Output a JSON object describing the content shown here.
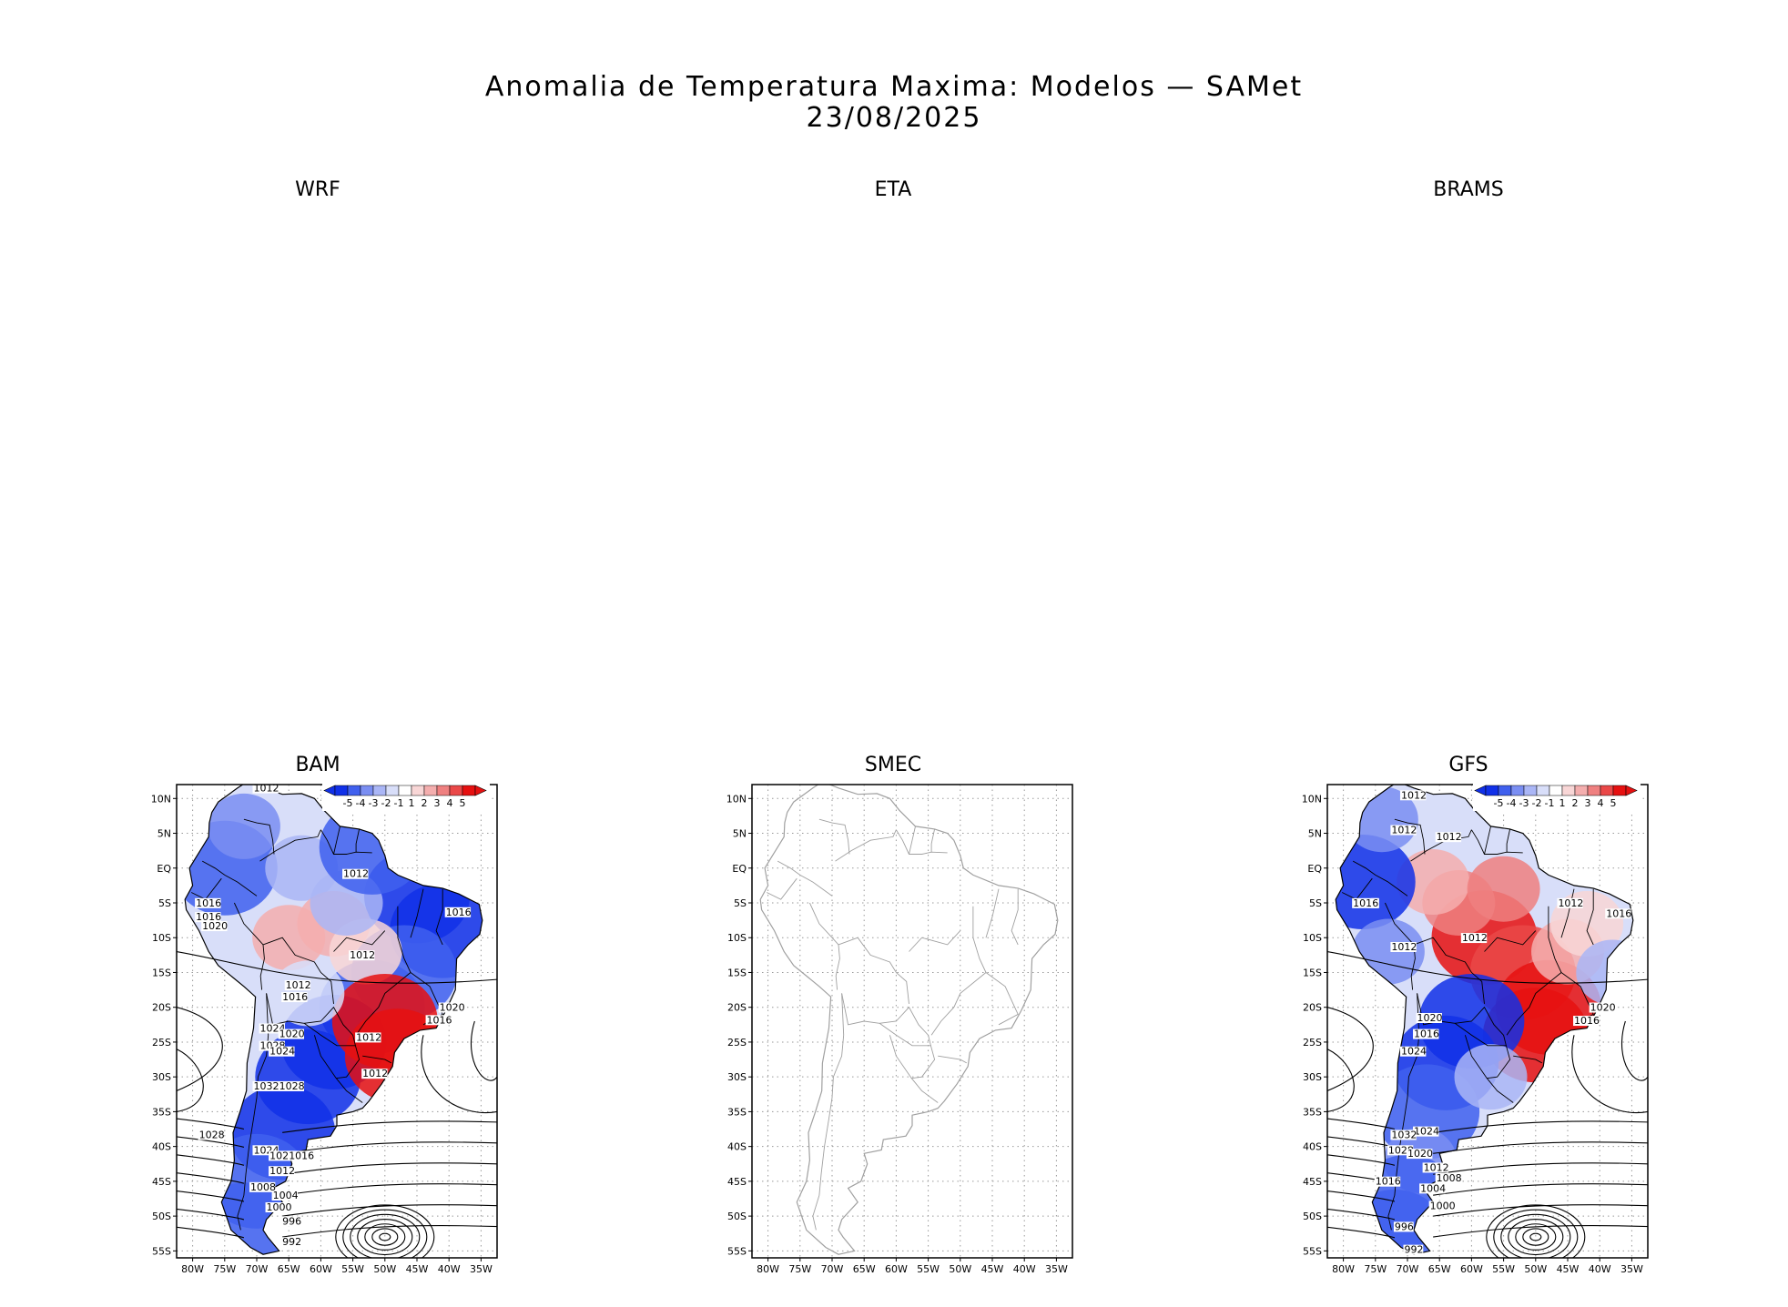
{
  "figure": {
    "title": "Anomalia de Temperatura Maxima: Modelos — SAMet",
    "date": "23/08/2025"
  },
  "colors": {
    "neg5": "#1030e8",
    "neg4": "#4060ee",
    "neg3": "#7a8ef2",
    "neg2": "#aab6f6",
    "neg1": "#d8def9",
    "neutral": "#ffffff",
    "pos1": "#f8d6d6",
    "pos2": "#f4aeae",
    "pos3": "#ef8080",
    "pos4": "#ea4848",
    "pos5": "#e61010",
    "contour": "#000000",
    "coast_gray": "#a0a0a0"
  },
  "chart_data": [
    {
      "type": "heatmap",
      "name": "WRF",
      "title": "WRF",
      "has_data": false
    },
    {
      "type": "heatmap",
      "name": "ETA",
      "title": "ETA",
      "has_data": false
    },
    {
      "type": "heatmap",
      "name": "BRAMS",
      "title": "BRAMS",
      "has_data": false
    },
    {
      "type": "heatmap",
      "name": "BAM",
      "title": "BAM",
      "has_data": true,
      "legend": {
        "labels": [
          "-5",
          "-4",
          "-3",
          "-2",
          "-1",
          "1",
          "2",
          "3",
          "4",
          "5"
        ],
        "placement": "top-right"
      },
      "ylabels": [
        "10N",
        "5N",
        "EQ",
        "5S",
        "10S",
        "15S",
        "20S",
        "25S",
        "30S",
        "35S",
        "40S",
        "45S",
        "50S",
        "55S"
      ],
      "xlabels": [
        "80W",
        "75W",
        "70W",
        "65W",
        "60W",
        "55W",
        "50W",
        "45W",
        "40W",
        "35W"
      ],
      "xlim": [
        -82.5,
        -32.5
      ],
      "ylim": [
        -56,
        12
      ],
      "contour_labels": [
        {
          "text": "1012",
          "lon": -70.5,
          "lat": 11.0
        },
        {
          "text": "1012",
          "lon": -56.5,
          "lat": -1.3
        },
        {
          "text": "1016",
          "lon": -40.5,
          "lat": -6.8
        },
        {
          "text": "1016",
          "lon": -79.5,
          "lat": -5.5
        },
        {
          "text": "1016",
          "lon": -79.5,
          "lat": -7.5
        },
        {
          "text": "1020",
          "lon": -78.5,
          "lat": -8.8
        },
        {
          "text": "1012",
          "lon": -55.5,
          "lat": -13.0
        },
        {
          "text": "1012",
          "lon": -65.5,
          "lat": -17.3
        },
        {
          "text": "1016",
          "lon": -66.0,
          "lat": -19.0
        },
        {
          "text": "1020",
          "lon": -41.5,
          "lat": -20.5
        },
        {
          "text": "1016",
          "lon": -43.5,
          "lat": -22.3
        },
        {
          "text": "1024",
          "lon": -69.5,
          "lat": -23.5
        },
        {
          "text": "1020",
          "lon": -66.5,
          "lat": -24.3
        },
        {
          "text": "1012",
          "lon": -54.5,
          "lat": -24.8
        },
        {
          "text": "1028",
          "lon": -69.5,
          "lat": -26.0
        },
        {
          "text": "1024",
          "lon": -68.0,
          "lat": -26.8
        },
        {
          "text": "1012",
          "lon": -53.5,
          "lat": -30.0
        },
        {
          "text": "1032",
          "lon": -70.5,
          "lat": -31.8
        },
        {
          "text": "1028",
          "lon": -66.5,
          "lat": -31.8
        },
        {
          "text": "1028",
          "lon": -79.0,
          "lat": -38.8
        },
        {
          "text": "1024",
          "lon": -70.5,
          "lat": -41.0
        },
        {
          "text": "1020",
          "lon": -68.0,
          "lat": -41.8
        },
        {
          "text": "1016",
          "lon": -65.0,
          "lat": -41.8
        },
        {
          "text": "1012",
          "lon": -68.0,
          "lat": -44.0
        },
        {
          "text": "1008",
          "lon": -71.0,
          "lat": -46.3
        },
        {
          "text": "1004",
          "lon": -67.5,
          "lat": -47.5
        },
        {
          "text": "1000",
          "lon": -68.5,
          "lat": -49.2
        },
        {
          "text": "996",
          "lon": -66.0,
          "lat": -51.2
        },
        {
          "text": "992",
          "lon": -66.0,
          "lat": -54.2
        }
      ],
      "anomaly_regions": [
        {
          "lon": -41,
          "lat": -9,
          "value": -5
        },
        {
          "lon": -45,
          "lat": -4,
          "value": -5
        },
        {
          "lon": -47,
          "lat": -15,
          "value": -4
        },
        {
          "lon": -52,
          "lat": -20,
          "value": -4
        },
        {
          "lon": -62,
          "lat": -30,
          "value": -5
        },
        {
          "lon": -66,
          "lat": -38,
          "value": -5
        },
        {
          "lon": -58,
          "lat": -25,
          "value": -5
        },
        {
          "lon": -70,
          "lat": -45,
          "value": -4
        },
        {
          "lon": -72,
          "lat": -52,
          "value": -4
        },
        {
          "lon": -75,
          "lat": 0,
          "value": -4
        },
        {
          "lon": -72,
          "lat": 6,
          "value": -3
        },
        {
          "lon": -63,
          "lat": 0,
          "value": -2
        },
        {
          "lon": -58,
          "lat": -8,
          "value": 2
        },
        {
          "lon": -65,
          "lat": -10,
          "value": 2
        },
        {
          "lon": -53,
          "lat": -12,
          "value": 1
        },
        {
          "lon": -50,
          "lat": -22,
          "value": 5
        },
        {
          "lon": -48,
          "lat": -27,
          "value": 5
        },
        {
          "lon": -56,
          "lat": -5,
          "value": -2
        },
        {
          "lon": -62,
          "lat": -18,
          "value": -1
        },
        {
          "lon": -52,
          "lat": 3,
          "value": -4
        }
      ]
    },
    {
      "type": "heatmap",
      "name": "SMEC",
      "title": "SMEC",
      "has_data": false,
      "ylabels": [
        "10N",
        "5N",
        "EQ",
        "5S",
        "10S",
        "15S",
        "20S",
        "25S",
        "30S",
        "35S",
        "40S",
        "45S",
        "50S",
        "55S"
      ],
      "xlabels": [
        "80W",
        "75W",
        "70W",
        "65W",
        "60W",
        "55W",
        "50W",
        "45W",
        "40W",
        "35W"
      ],
      "xlim": [
        -82.5,
        -32.5
      ],
      "ylim": [
        -56,
        12
      ]
    },
    {
      "type": "heatmap",
      "name": "GFS",
      "title": "GFS",
      "has_data": true,
      "legend": {
        "labels": [
          "-5",
          "-4",
          "-3",
          "-2",
          "-1",
          "1",
          "2",
          "3",
          "4",
          "5"
        ],
        "placement": "top-right"
      },
      "ylabels": [
        "10N",
        "5N",
        "EQ",
        "5S",
        "10S",
        "15S",
        "20S",
        "25S",
        "30S",
        "35S",
        "40S",
        "45S",
        "50S",
        "55S"
      ],
      "xlabels": [
        "80W",
        "75W",
        "70W",
        "65W",
        "60W",
        "55W",
        "50W",
        "45W",
        "40W",
        "35W"
      ],
      "xlim": [
        -82.5,
        -32.5
      ],
      "ylim": [
        -56,
        12
      ],
      "contour_labels": [
        {
          "text": "1012",
          "lon": -71.0,
          "lat": 10.0
        },
        {
          "text": "1012",
          "lon": -72.5,
          "lat": 5.0
        },
        {
          "text": "1012",
          "lon": -65.5,
          "lat": 4.0
        },
        {
          "text": "1012",
          "lon": -46.5,
          "lat": -5.5
        },
        {
          "text": "1016",
          "lon": -39.0,
          "lat": -7.0
        },
        {
          "text": "1016",
          "lon": -78.5,
          "lat": -5.5
        },
        {
          "text": "6",
          "lon": -75.5,
          "lat": -5.5
        },
        {
          "text": "1012",
          "lon": -72.5,
          "lat": -11.8
        },
        {
          "text": "1012",
          "lon": -61.5,
          "lat": -10.5
        },
        {
          "text": "1020",
          "lon": -41.5,
          "lat": -20.5
        },
        {
          "text": "1016",
          "lon": -44.0,
          "lat": -22.4
        },
        {
          "text": "1020",
          "lon": -68.5,
          "lat": -22.0
        },
        {
          "text": "1016",
          "lon": -69.0,
          "lat": -24.3
        },
        {
          "text": "1024",
          "lon": -71.0,
          "lat": -26.8
        },
        {
          "text": "1024",
          "lon": -69.0,
          "lat": -38.3
        },
        {
          "text": "1032",
          "lon": -72.5,
          "lat": -38.8
        },
        {
          "text": "1028",
          "lon": -73.0,
          "lat": -41.0
        },
        {
          "text": "1020",
          "lon": -70.0,
          "lat": -41.5
        },
        {
          "text": "1012",
          "lon": -67.5,
          "lat": -43.5
        },
        {
          "text": "1008",
          "lon": -65.5,
          "lat": -45.0
        },
        {
          "text": "1016",
          "lon": -75.0,
          "lat": -45.5
        },
        {
          "text": "1004",
          "lon": -68.0,
          "lat": -46.5
        },
        {
          "text": "1000",
          "lon": -66.5,
          "lat": -49.0
        },
        {
          "text": "996",
          "lon": -72.0,
          "lat": -52.0
        },
        {
          "text": "992",
          "lon": -70.5,
          "lat": -55.3
        }
      ],
      "anomaly_regions": [
        {
          "lon": -58,
          "lat": -10,
          "value": 5
        },
        {
          "lon": -52,
          "lat": -15,
          "value": 4
        },
        {
          "lon": -48,
          "lat": -20,
          "value": 5
        },
        {
          "lon": -50,
          "lat": -24,
          "value": 5
        },
        {
          "lon": -62,
          "lat": -5,
          "value": 3
        },
        {
          "lon": -66,
          "lat": -2,
          "value": 2
        },
        {
          "lon": -55,
          "lat": -3,
          "value": 3
        },
        {
          "lon": -45,
          "lat": -12,
          "value": 2
        },
        {
          "lon": -42,
          "lat": -8,
          "value": 1
        },
        {
          "lon": -60,
          "lat": -22,
          "value": -5
        },
        {
          "lon": -64,
          "lat": -28,
          "value": -5
        },
        {
          "lon": -67,
          "lat": -35,
          "value": -4
        },
        {
          "lon": -68,
          "lat": -42,
          "value": -3
        },
        {
          "lon": -70,
          "lat": -48,
          "value": -4
        },
        {
          "lon": -72,
          "lat": -53,
          "value": -4
        },
        {
          "lon": -77,
          "lat": -2,
          "value": -5
        },
        {
          "lon": -73,
          "lat": -12,
          "value": -3
        },
        {
          "lon": -57,
          "lat": -30,
          "value": -2
        },
        {
          "lon": -74,
          "lat": 7,
          "value": -3
        },
        {
          "lon": -38,
          "lat": -15,
          "value": -2
        }
      ]
    }
  ]
}
